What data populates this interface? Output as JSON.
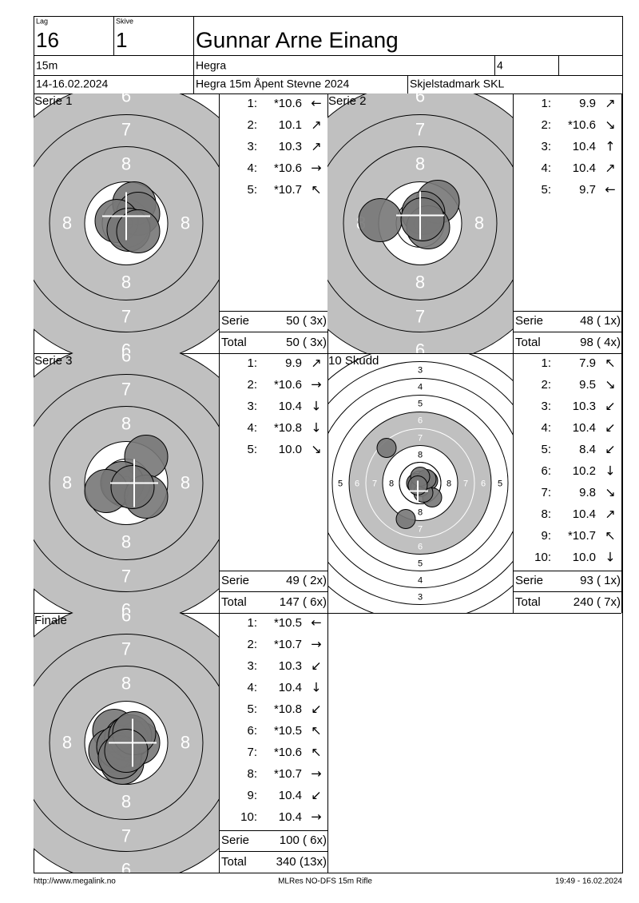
{
  "header": {
    "lag_label": "Lag",
    "lag": "16",
    "skive_label": "Skive",
    "skive": "1",
    "name": "Gunnar Arne Einang",
    "distance": "15m",
    "club": "Hegra",
    "code": "4",
    "date": "14-16.02.2024",
    "event": "Hegra 15m Åpent Stevne 2024",
    "location": "Skjelstadmark SKL"
  },
  "target_labels": {
    "series": [
      "6",
      "7",
      "8"
    ],
    "ten": [
      "3",
      "4",
      "5",
      "6",
      "7",
      "8"
    ]
  },
  "panels": [
    {
      "title": "Serie 1",
      "shots": [
        {
          "n": "1:",
          "score": "*10.6",
          "arrow": "←"
        },
        {
          "n": "2:",
          "score": "10.1",
          "arrow": "↗"
        },
        {
          "n": "3:",
          "score": "10.3",
          "arrow": "↗"
        },
        {
          "n": "4:",
          "score": "*10.6",
          "arrow": "→"
        },
        {
          "n": "5:",
          "score": "*10.7",
          "arrow": "↖"
        }
      ],
      "serie_label": "Serie",
      "serie": "50 ( 3x)",
      "total_label": "Total",
      "total": "50 ( 3x)"
    },
    {
      "title": "Serie 2",
      "shots": [
        {
          "n": "1:",
          "score": "9.9",
          "arrow": "↗"
        },
        {
          "n": "2:",
          "score": "*10.6",
          "arrow": "↘"
        },
        {
          "n": "3:",
          "score": "10.4",
          "arrow": "↑"
        },
        {
          "n": "4:",
          "score": "10.4",
          "arrow": "↗"
        },
        {
          "n": "5:",
          "score": "9.7",
          "arrow": "←"
        }
      ],
      "serie_label": "Serie",
      "serie": "48 ( 1x)",
      "total_label": "Total",
      "total": "98 ( 4x)"
    },
    {
      "title": "Serie 3",
      "shots": [
        {
          "n": "1:",
          "score": "9.9",
          "arrow": "↗"
        },
        {
          "n": "2:",
          "score": "*10.6",
          "arrow": "→"
        },
        {
          "n": "3:",
          "score": "10.4",
          "arrow": "↓"
        },
        {
          "n": "4:",
          "score": "*10.8",
          "arrow": "↓"
        },
        {
          "n": "5:",
          "score": "10.0",
          "arrow": "↘"
        }
      ],
      "serie_label": "Serie",
      "serie": "49 ( 2x)",
      "total_label": "Total",
      "total": "147 ( 6x)"
    },
    {
      "title": "10 Skudd",
      "shots": [
        {
          "n": "1:",
          "score": "7.9",
          "arrow": "↖"
        },
        {
          "n": "2:",
          "score": "9.5",
          "arrow": "↘"
        },
        {
          "n": "3:",
          "score": "10.3",
          "arrow": "↙"
        },
        {
          "n": "4:",
          "score": "10.4",
          "arrow": "↙"
        },
        {
          "n": "5:",
          "score": "8.4",
          "arrow": "↙"
        },
        {
          "n": "6:",
          "score": "10.2",
          "arrow": "↓"
        },
        {
          "n": "7:",
          "score": "9.8",
          "arrow": "↘"
        },
        {
          "n": "8:",
          "score": "10.4",
          "arrow": "↗"
        },
        {
          "n": "9:",
          "score": "*10.7",
          "arrow": "↖"
        },
        {
          "n": "10:",
          "score": "10.0",
          "arrow": "↓"
        }
      ],
      "serie_label": "Serie",
      "serie": "93 ( 1x)",
      "total_label": "Total",
      "total": "240 ( 7x)"
    },
    {
      "title": "Finale",
      "shots": [
        {
          "n": "1:",
          "score": "*10.5",
          "arrow": "←"
        },
        {
          "n": "2:",
          "score": "*10.7",
          "arrow": "→"
        },
        {
          "n": "3:",
          "score": "10.3",
          "arrow": "↙"
        },
        {
          "n": "4:",
          "score": "10.4",
          "arrow": "↓"
        },
        {
          "n": "5:",
          "score": "*10.8",
          "arrow": "↙"
        },
        {
          "n": "6:",
          "score": "*10.5",
          "arrow": "↖"
        },
        {
          "n": "7:",
          "score": "*10.6",
          "arrow": "↖"
        },
        {
          "n": "8:",
          "score": "*10.7",
          "arrow": "→"
        },
        {
          "n": "9:",
          "score": "10.4",
          "arrow": "↙"
        },
        {
          "n": "10:",
          "score": "10.4",
          "arrow": "→"
        }
      ],
      "serie_label": "Serie",
      "serie": "100 ( 6x)",
      "total_label": "Total",
      "total": "340 (13x)"
    }
  ],
  "footer": {
    "url": "http://www.megalink.no",
    "program": "MLRes NO-DFS 15m Rifle",
    "timestamp": "19:49 - 16.02.2024"
  }
}
